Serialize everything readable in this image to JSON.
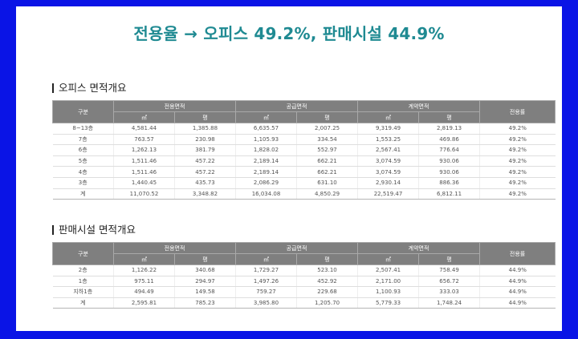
{
  "title": "전용율 → 오피스 49.2%, 판매시설 44.9%",
  "office": {
    "section_title": "오피스 면적개요",
    "headers": {
      "category": "구분",
      "exclusive": "전용면적",
      "supply": "공급면적",
      "contract": "계약면적",
      "ratio": "전용률",
      "sqm": "㎡",
      "pyeong": "평"
    },
    "rows": [
      [
        "8~13층",
        "4,581.44",
        "1,385.88",
        "6,635.57",
        "2,007.25",
        "9,319.49",
        "2,819.13",
        "49.2%"
      ],
      [
        "7층",
        "763.57",
        "230.98",
        "1,105.93",
        "334.54",
        "1,553.25",
        "469.86",
        "49.2%"
      ],
      [
        "6층",
        "1,262.13",
        "381.79",
        "1,828.02",
        "552.97",
        "2,567.41",
        "776.64",
        "49.2%"
      ],
      [
        "5층",
        "1,511.46",
        "457.22",
        "2,189.14",
        "662.21",
        "3,074.59",
        "930.06",
        "49.2%"
      ],
      [
        "4층",
        "1,511.46",
        "457.22",
        "2,189.14",
        "662.21",
        "3,074.59",
        "930.06",
        "49.2%"
      ],
      [
        "3층",
        "1,440.45",
        "435.73",
        "2,086.29",
        "631.10",
        "2,930.14",
        "886.36",
        "49.2%"
      ],
      [
        "계",
        "11,070.52",
        "3,348.82",
        "16,034.08",
        "4,850.29",
        "22,519.47",
        "6,812.11",
        "49.2%"
      ]
    ]
  },
  "retail": {
    "section_title": "판매시설 면적개요",
    "headers": {
      "category": "구분",
      "exclusive": "전용면적",
      "supply": "공급면적",
      "contract": "계약면적",
      "ratio": "전용률",
      "sqm": "㎡",
      "pyeong": "평"
    },
    "rows": [
      [
        "2층",
        "1,126.22",
        "340.68",
        "1,729.27",
        "523.10",
        "2,507.41",
        "758.49",
        "44.9%"
      ],
      [
        "1층",
        "975.11",
        "294.97",
        "1,497.26",
        "452.92",
        "2,171.00",
        "656.72",
        "44.9%"
      ],
      [
        "지하1층",
        "494.49",
        "149.58",
        "759.27",
        "229.68",
        "1,100.93",
        "333.03",
        "44.9%"
      ],
      [
        "계",
        "2,595.81",
        "785.23",
        "3,985.80",
        "1,205.70",
        "5,779.33",
        "1,748.24",
        "44.9%"
      ]
    ]
  }
}
